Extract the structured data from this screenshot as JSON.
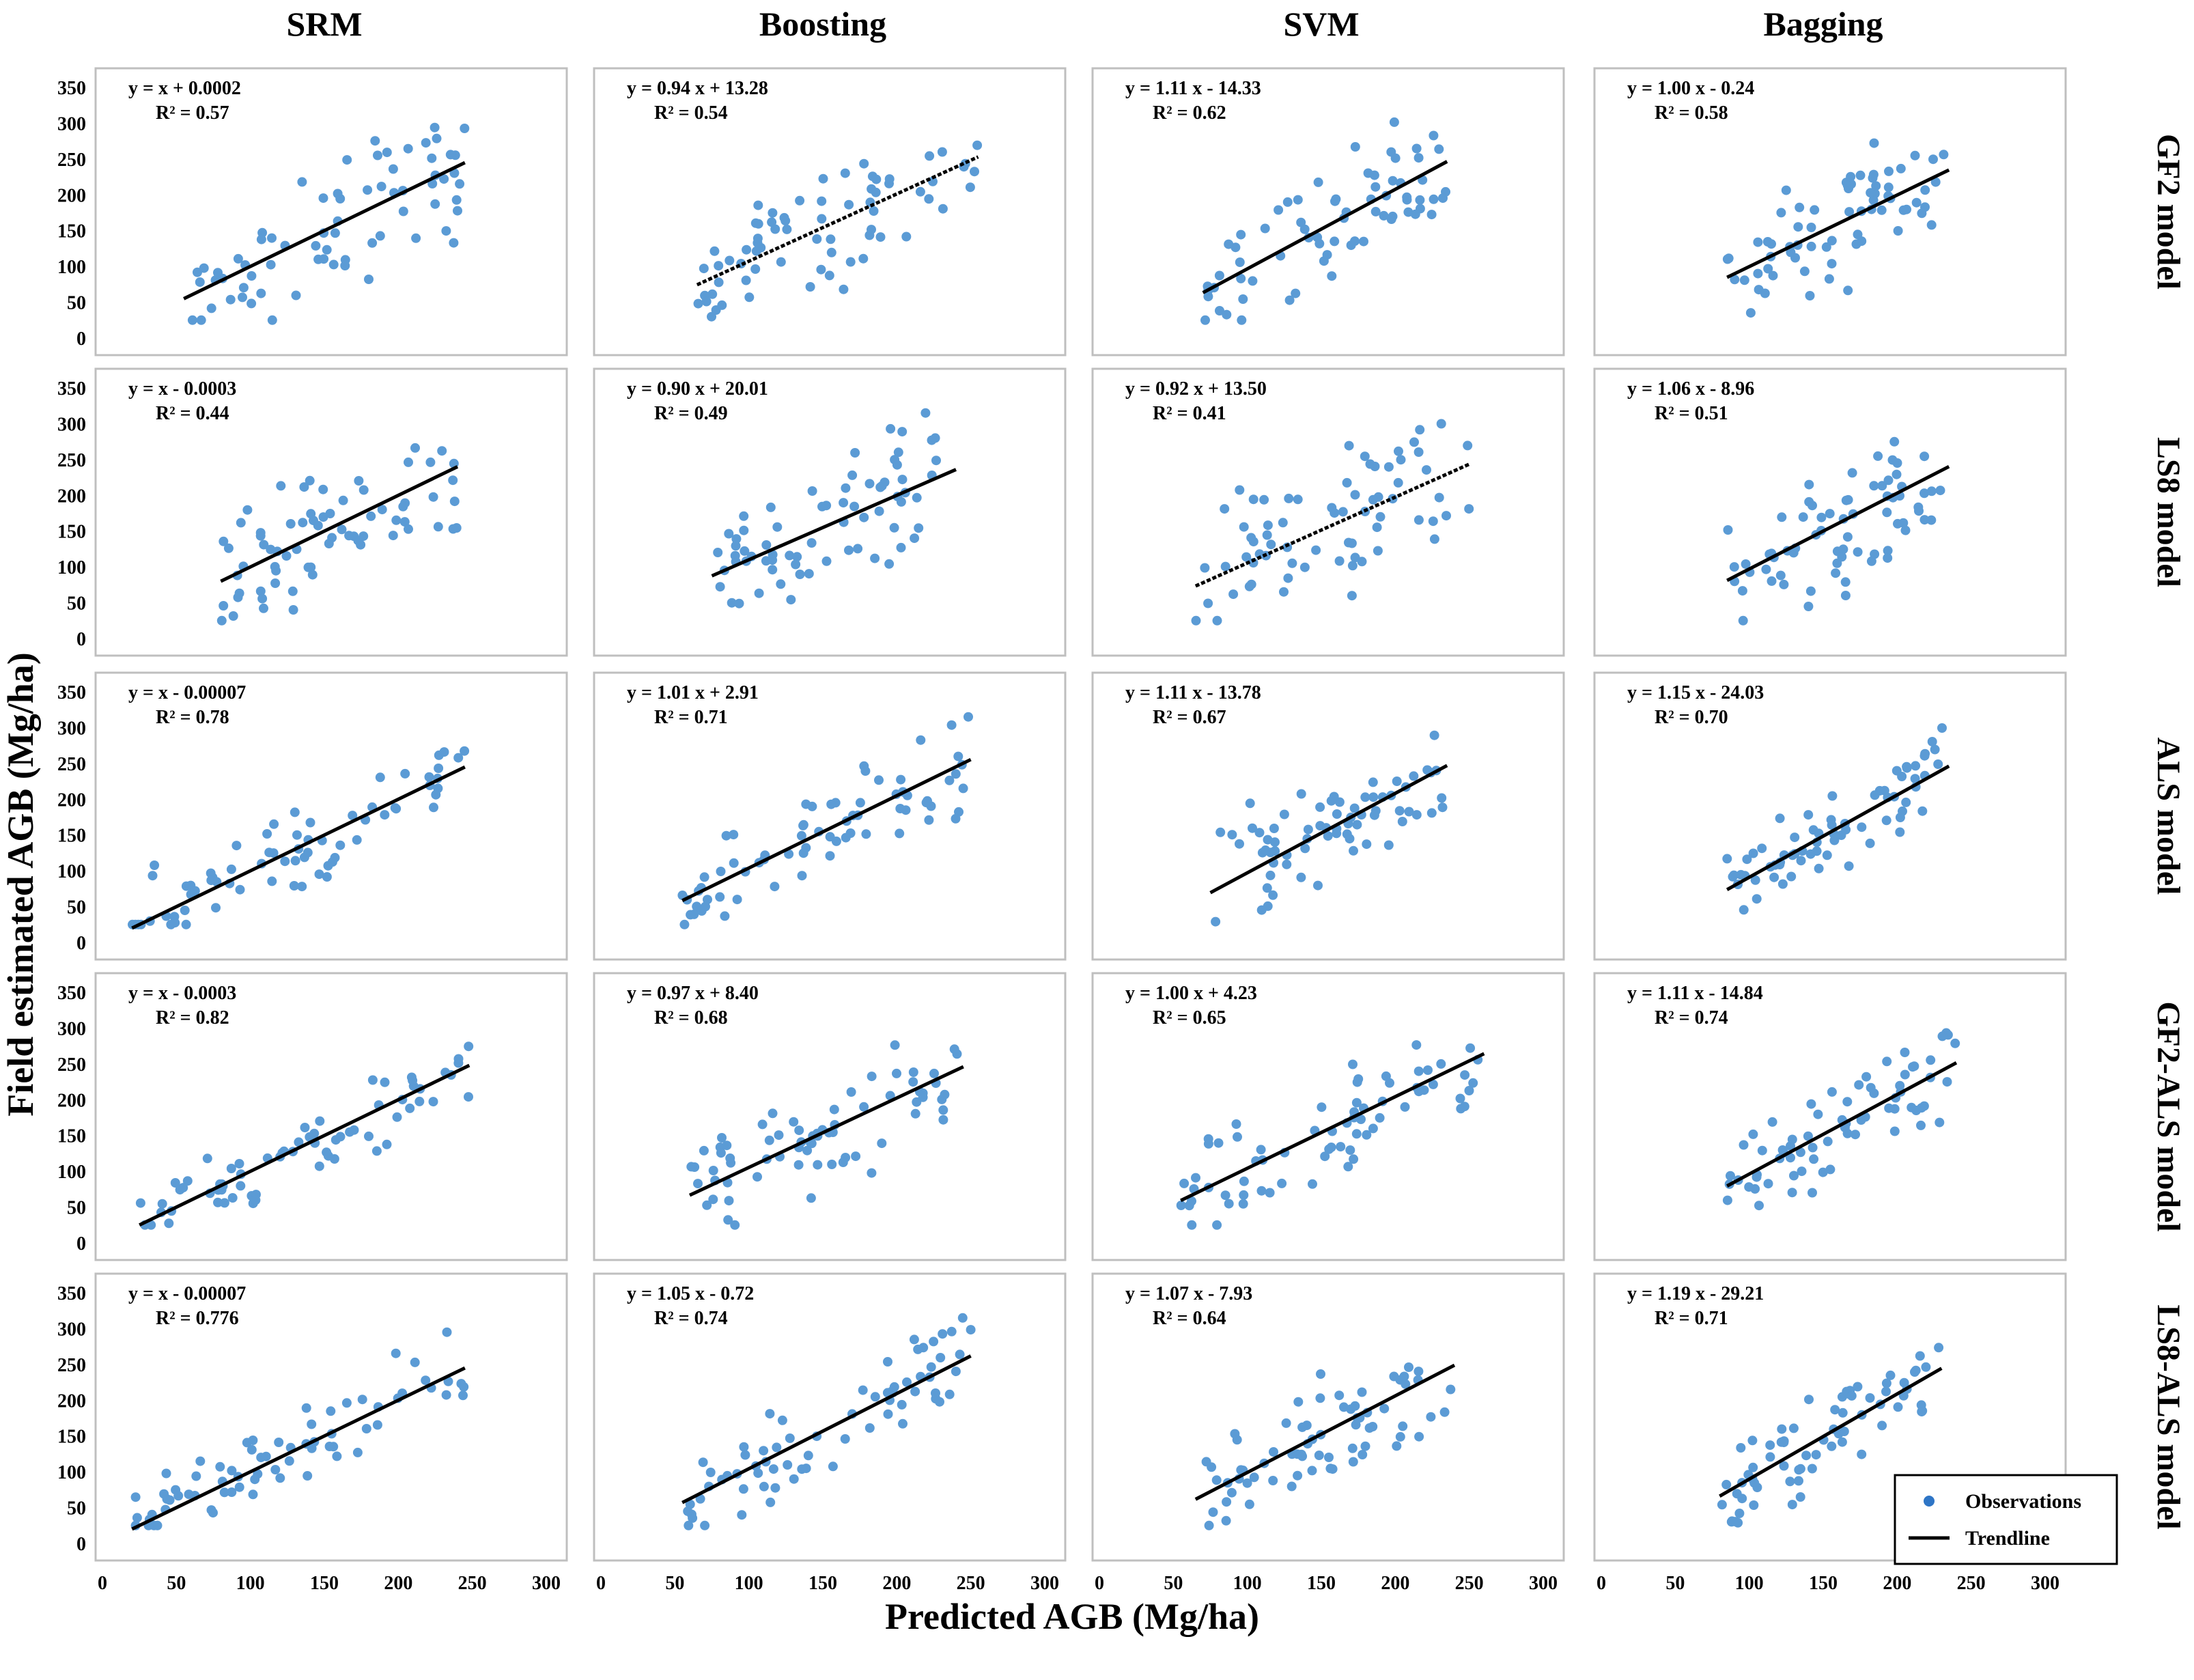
{
  "figure": {
    "column_titles": [
      "SRM",
      "Boosting",
      "SVM",
      "Bagging"
    ],
    "row_titles": [
      "GF2 model",
      "LS8 model",
      "ALS model",
      "GF2-ALS model",
      "LS8-ALS model"
    ],
    "ylabel": "Field estimated AGB (Mg/ha)",
    "xlabel": "Predicted AGB (Mg/ha)",
    "legend": {
      "observations_label": "Observations",
      "trendline_label": "Trendline",
      "placement": "bottom-right"
    },
    "colors": {
      "points": "#5b9bd5",
      "trendline": "#000000",
      "frame": "#bfbfbf"
    }
  },
  "chart_data": [
    {
      "type": "scatter",
      "model": "SRM",
      "dataset": "GF2",
      "eq_line1": "y = x + 0.0002",
      "eq_line2": "R² = 0.57",
      "slope": 1.0,
      "intercept": 0.0002,
      "fit_x": [
        55,
        245
      ],
      "dashed": false,
      "xlim": [
        0,
        300
      ],
      "ylim": [
        0,
        350
      ],
      "yticks": [
        0,
        50,
        100,
        150,
        200,
        250,
        300,
        350
      ]
    },
    {
      "type": "scatter",
      "model": "Boosting",
      "dataset": "GF2",
      "eq_line1": "y = 0.94 x + 13.28",
      "eq_line2": "R² = 0.54",
      "slope": 0.94,
      "intercept": 13.28,
      "fit_x": [
        65,
        255
      ],
      "dashed": true,
      "xlim": [
        0,
        300
      ],
      "ylim": [
        0,
        350
      ]
    },
    {
      "type": "scatter",
      "model": "SVM",
      "dataset": "GF2",
      "eq_line1": "y = 1.11 x - 14.33",
      "eq_line2": "R² = 0.62",
      "slope": 1.11,
      "intercept": -14.33,
      "fit_x": [
        70,
        235
      ],
      "dashed": false,
      "xlim": [
        0,
        300
      ],
      "ylim": [
        0,
        350
      ]
    },
    {
      "type": "scatter",
      "model": "Bagging",
      "dataset": "GF2",
      "eq_line1": "y = 1.00 x - 0.24",
      "eq_line2": "R² = 0.58",
      "slope": 1.0,
      "intercept": -0.24,
      "fit_x": [
        85,
        235
      ],
      "dashed": false,
      "xlim": [
        0,
        300
      ],
      "ylim": [
        0,
        350
      ]
    },
    {
      "type": "scatter",
      "model": "SRM",
      "dataset": "LS8",
      "eq_line1": "y = x - 0.0003",
      "eq_line2": "R² = 0.44",
      "slope": 1.0,
      "intercept": -0.0003,
      "fit_x": [
        80,
        240
      ],
      "dashed": false,
      "xlim": [
        0,
        300
      ],
      "ylim": [
        0,
        350
      ],
      "yticks": [
        0,
        50,
        100,
        150,
        200,
        250,
        300,
        350
      ]
    },
    {
      "type": "scatter",
      "model": "Boosting",
      "dataset": "LS8",
      "eq_line1": "y = 0.90 x + 20.01",
      "eq_line2": "R² = 0.49",
      "slope": 0.9,
      "intercept": 20.01,
      "fit_x": [
        75,
        240
      ],
      "dashed": false,
      "xlim": [
        0,
        300
      ],
      "ylim": [
        0,
        350
      ]
    },
    {
      "type": "scatter",
      "model": "SVM",
      "dataset": "LS8",
      "eq_line1": "y = 0.92 x + 13.50",
      "eq_line2": "R² = 0.41",
      "slope": 0.92,
      "intercept": 13.5,
      "fit_x": [
        65,
        250
      ],
      "dashed": true,
      "xlim": [
        0,
        300
      ],
      "ylim": [
        0,
        350
      ]
    },
    {
      "type": "scatter",
      "model": "Bagging",
      "dataset": "LS8",
      "eq_line1": "y = 1.06 x - 8.96",
      "eq_line2": "R² = 0.51",
      "slope": 1.06,
      "intercept": -8.96,
      "fit_x": [
        85,
        235
      ],
      "dashed": false,
      "xlim": [
        0,
        300
      ],
      "ylim": [
        0,
        350
      ]
    },
    {
      "type": "scatter",
      "model": "SRM",
      "dataset": "ALS",
      "eq_line1": "y = x - 0.00007",
      "eq_line2": "R² = 0.78",
      "slope": 1.0,
      "intercept": -7e-05,
      "fit_x": [
        20,
        245
      ],
      "dashed": false,
      "xlim": [
        0,
        300
      ],
      "ylim": [
        0,
        350
      ],
      "yticks": [
        0,
        50,
        100,
        150,
        200,
        250,
        300,
        350
      ]
    },
    {
      "type": "scatter",
      "model": "Boosting",
      "dataset": "ALS",
      "eq_line1": "y = 1.01 x + 2.91",
      "eq_line2": "R² = 0.71",
      "slope": 1.01,
      "intercept": 2.91,
      "fit_x": [
        55,
        250
      ],
      "dashed": false,
      "xlim": [
        0,
        300
      ],
      "ylim": [
        0,
        350
      ]
    },
    {
      "type": "scatter",
      "model": "SVM",
      "dataset": "ALS",
      "eq_line1": "y = 1.11 x - 13.78",
      "eq_line2": "R² = 0.67",
      "slope": 1.11,
      "intercept": -13.78,
      "fit_x": [
        75,
        235
      ],
      "dashed": false,
      "xlim": [
        0,
        300
      ],
      "ylim": [
        0,
        350
      ]
    },
    {
      "type": "scatter",
      "model": "Bagging",
      "dataset": "ALS",
      "eq_line1": "y = 1.15 x - 24.03",
      "eq_line2": "R² = 0.70",
      "slope": 1.15,
      "intercept": -24.03,
      "fit_x": [
        85,
        235
      ],
      "dashed": false,
      "xlim": [
        0,
        300
      ],
      "ylim": [
        0,
        350
      ]
    },
    {
      "type": "scatter",
      "model": "SRM",
      "dataset": "GF2-ALS",
      "eq_line1": "y = x - 0.0003",
      "eq_line2": "R² = 0.82",
      "slope": 1.0,
      "intercept": -0.0003,
      "fit_x": [
        25,
        248
      ],
      "dashed": false,
      "xlim": [
        0,
        300
      ],
      "ylim": [
        0,
        350
      ],
      "yticks": [
        0,
        50,
        100,
        150,
        200,
        250,
        300,
        350
      ]
    },
    {
      "type": "scatter",
      "model": "Boosting",
      "dataset": "GF2-ALS",
      "eq_line1": "y = 0.97 x + 8.40",
      "eq_line2": "R² = 0.68",
      "slope": 0.97,
      "intercept": 8.4,
      "fit_x": [
        60,
        245
      ],
      "dashed": false,
      "xlim": [
        0,
        300
      ],
      "ylim": [
        0,
        350
      ]
    },
    {
      "type": "scatter",
      "model": "SVM",
      "dataset": "GF2-ALS",
      "eq_line1": "y = 1.00 x + 4.23",
      "eq_line2": "R² = 0.65",
      "slope": 1.0,
      "intercept": 4.23,
      "fit_x": [
        55,
        260
      ],
      "dashed": false,
      "xlim": [
        0,
        300
      ],
      "ylim": [
        0,
        350
      ]
    },
    {
      "type": "scatter",
      "model": "Bagging",
      "dataset": "GF2-ALS",
      "eq_line1": "y = 1.11 x - 14.84",
      "eq_line2": "R² = 0.74",
      "slope": 1.11,
      "intercept": -14.84,
      "fit_x": [
        85,
        240
      ],
      "dashed": false,
      "xlim": [
        0,
        300
      ],
      "ylim": [
        0,
        350
      ]
    },
    {
      "type": "scatter",
      "model": "SRM",
      "dataset": "LS8-ALS",
      "eq_line1": "y = x - 0.00007",
      "eq_line2": "R² = 0.776",
      "slope": 1.0,
      "intercept": -7e-05,
      "fit_x": [
        20,
        245
      ],
      "dashed": false,
      "xlim": [
        0,
        300
      ],
      "ylim": [
        0,
        350
      ],
      "yticks": [
        0,
        50,
        100,
        150,
        200,
        250,
        300,
        350
      ],
      "xticks": [
        0,
        50,
        100,
        150,
        200,
        250,
        300
      ]
    },
    {
      "type": "scatter",
      "model": "Boosting",
      "dataset": "LS8-ALS",
      "eq_line1": "y = 1.05 x - 0.72",
      "eq_line2": "R² = 0.74",
      "slope": 1.05,
      "intercept": -0.72,
      "fit_x": [
        55,
        250
      ],
      "dashed": false,
      "xlim": [
        0,
        300
      ],
      "ylim": [
        0,
        350
      ],
      "xticks": [
        0,
        50,
        100,
        150,
        200,
        250,
        300
      ]
    },
    {
      "type": "scatter",
      "model": "SVM",
      "dataset": "LS8-ALS",
      "eq_line1": "y = 1.07 x - 7.93",
      "eq_line2": "R² = 0.64",
      "slope": 1.07,
      "intercept": -7.93,
      "fit_x": [
        65,
        240
      ],
      "dashed": false,
      "xlim": [
        0,
        300
      ],
      "ylim": [
        0,
        350
      ],
      "xticks": [
        0,
        50,
        100,
        150,
        200,
        250,
        300
      ]
    },
    {
      "type": "scatter",
      "model": "Bagging",
      "dataset": "LS8-ALS",
      "eq_line1": "y = 1.19 x - 29.21",
      "eq_line2": "R² = 0.71",
      "slope": 1.19,
      "intercept": -29.21,
      "fit_x": [
        80,
        230
      ],
      "dashed": false,
      "xlim": [
        0,
        300
      ],
      "ylim": [
        0,
        350
      ],
      "xticks": [
        0,
        50,
        100,
        150,
        200,
        250,
        300
      ]
    }
  ]
}
